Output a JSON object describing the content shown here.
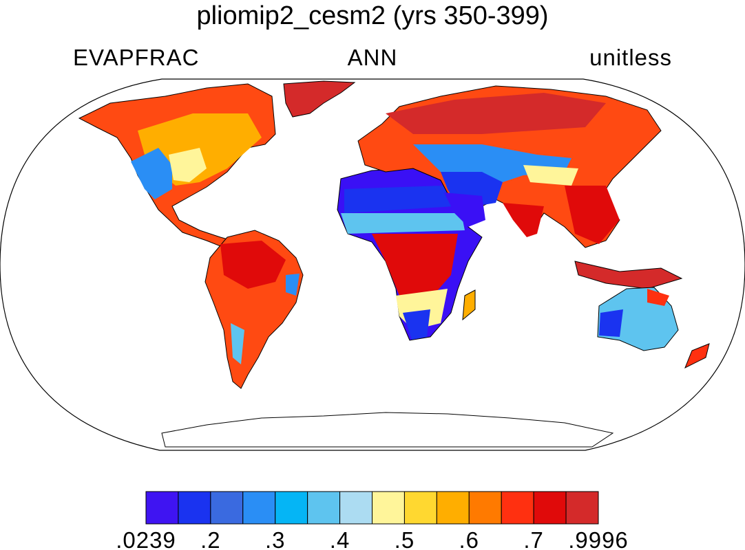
{
  "header": {
    "title": "pliomip2_cesm2 (yrs 350-399)",
    "variable": "EVAPFRAC",
    "season": "ANN",
    "units": "unitless"
  },
  "map": {
    "projection": "robinson",
    "colors": {
      "very_low": "#3a10f5",
      "low": "#1a33f0",
      "medium_low": "#2a8ef5",
      "medium": "#5ec4ef",
      "mid_high": "#fff59a",
      "high": "#ffae00",
      "very_high": "#ff3b10",
      "highest": "#d42a2a"
    }
  },
  "colorbar": {
    "colors": [
      "#3f14f2",
      "#1a33f0",
      "#3a6ae0",
      "#2a8ef5",
      "#05b5f5",
      "#5ec4ef",
      "#acdcf2",
      "#fff59a",
      "#ffd830",
      "#ffae00",
      "#ff7a00",
      "#ff3010",
      "#e00a0a",
      "#d42a2a"
    ],
    "labels": [
      ".0239",
      ".2",
      ".3",
      ".4",
      ".5",
      ".6",
      ".7",
      ".9996"
    ]
  }
}
